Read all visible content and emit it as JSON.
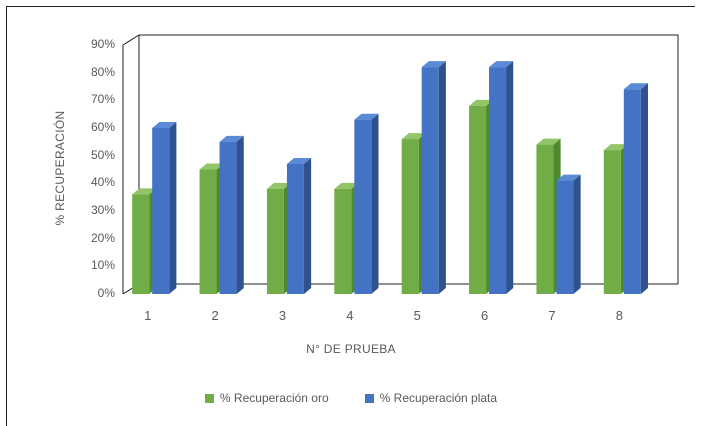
{
  "chart_data": {
    "type": "bar",
    "categories": [
      "1",
      "2",
      "3",
      "4",
      "5",
      "6",
      "7",
      "8"
    ],
    "series": [
      {
        "name": "% Recuperación oro",
        "values": [
          36,
          45,
          38,
          38,
          56,
          68,
          54,
          52
        ],
        "color": "#70ad47",
        "side_color": "#4e8a2c",
        "top_color": "#92c46a"
      },
      {
        "name": "% Recuperación plata",
        "values": [
          60,
          55,
          47,
          63,
          82,
          82,
          41,
          74
        ],
        "color": "#4472c4",
        "side_color": "#2f528f",
        "top_color": "#5b8ad8"
      }
    ],
    "xlabel": "N° DE PRUEBA",
    "ylabel": "% RECUPERACIÓN",
    "ylim": [
      0,
      90
    ],
    "yticks": [
      "0%",
      "10%",
      "20%",
      "30%",
      "40%",
      "50%",
      "60%",
      "70%",
      "80%",
      "90%"
    ],
    "grid": false,
    "legend_position": "bottom"
  }
}
